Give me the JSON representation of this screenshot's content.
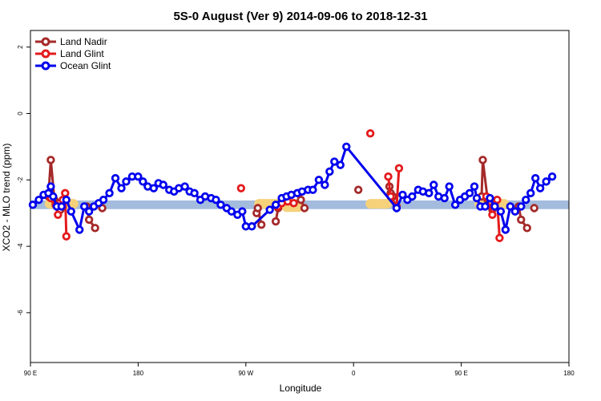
{
  "chart_data": {
    "type": "line",
    "title": "5S-0 August (Ver 9)   2014-09-06 to 2018-12-31",
    "xlabel": "Longitude",
    "ylabel": "XCO2 - MLO trend (ppm)",
    "xlim": [
      90,
      540
    ],
    "ylim": [
      -7.5,
      2.5
    ],
    "x_ticks": [
      {
        "value": 90,
        "label": "90 E"
      },
      {
        "value": 180,
        "label": "180"
      },
      {
        "value": 270,
        "label": "90 W"
      },
      {
        "value": 360,
        "label": "0"
      },
      {
        "value": 450,
        "label": "90 E"
      },
      {
        "value": 540,
        "label": "180"
      }
    ],
    "y_ticks": [
      {
        "value": 2,
        "label": "2"
      },
      {
        "value": 0,
        "label": "0"
      },
      {
        "value": -2,
        "label": "-2"
      },
      {
        "value": -4,
        "label": "-4"
      },
      {
        "value": -6,
        "label": "-6"
      }
    ],
    "band": {
      "y_low": -2.88,
      "y_high": -2.62,
      "color": "#a3bbdd"
    },
    "land_highlights": [
      {
        "x_start": 102,
        "x_end": 130,
        "y": -2.72
      },
      {
        "x_start": 277,
        "x_end": 315,
        "y": -2.72
      },
      {
        "x_start": 300,
        "x_end": 318,
        "y": -2.82
      },
      {
        "x_start": 370,
        "x_end": 392,
        "y": -2.72
      },
      {
        "x_start": 461,
        "x_end": 490,
        "y": -2.72
      }
    ],
    "highlight_color": "#f5d27a",
    "legend": {
      "position": "top-left"
    },
    "series": [
      {
        "name": "Land Nadir",
        "color": "#a52a2a",
        "segments": [
          [
            [
              105,
              -2.5
            ],
            [
              107,
              -1.4
            ],
            [
              110,
              -2.6
            ]
          ],
          [
            [
              113,
              -2.7
            ],
            [
              115,
              -2.9
            ]
          ],
          [
            [
              137,
              -2.8
            ],
            [
              139,
              -3.2
            ],
            [
              144,
              -3.45
            ]
          ],
          [
            [
              150,
              -2.85
            ]
          ],
          [
            [
              279,
              -3.0
            ],
            [
              280,
              -2.85
            ],
            [
              283,
              -3.35
            ]
          ],
          [
            [
              295,
              -3.25
            ],
            [
              297,
              -2.85
            ]
          ],
          [
            [
              314,
              -2.4
            ],
            [
              316,
              -2.6
            ],
            [
              319,
              -2.85
            ]
          ],
          [
            [
              364,
              -2.3
            ]
          ],
          [
            [
              390,
              -2.2
            ],
            [
              391,
              -2.4
            ],
            [
              393,
              -2.5
            ]
          ],
          [
            [
              467,
              -2.5
            ],
            [
              468,
              -1.4
            ],
            [
              472,
              -2.6
            ]
          ],
          [
            [
              473,
              -2.7
            ],
            [
              476,
              -2.9
            ]
          ],
          [
            [
              498,
              -2.8
            ],
            [
              500,
              -3.2
            ],
            [
              505,
              -3.45
            ]
          ],
          [
            [
              511,
              -2.85
            ]
          ]
        ]
      },
      {
        "name": "Land Glint",
        "color": "#e41a1c",
        "segments": [
          [
            [
              107,
              -2.55
            ],
            [
              111,
              -2.75
            ],
            [
              113,
              -3.05
            ]
          ],
          [
            [
              117,
              -2.6
            ],
            [
              119,
              -2.4
            ],
            [
              120,
              -3.7
            ]
          ],
          [
            [
              266,
              -2.25
            ]
          ],
          [
            [
              297,
              -2.8
            ],
            [
              300,
              -2.7
            ],
            [
              305,
              -2.65
            ],
            [
              310,
              -2.7
            ]
          ],
          [
            [
              374,
              -0.6
            ]
          ],
          [
            [
              389,
              -1.9
            ],
            [
              391,
              -2.5
            ],
            [
              396,
              -2.8
            ],
            [
              398,
              -1.65
            ]
          ],
          [
            [
              471,
              -2.5
            ],
            [
              476,
              -3.05
            ],
            [
              480,
              -2.6
            ],
            [
              482,
              -3.75
            ]
          ]
        ]
      },
      {
        "name": "Ocean Glint",
        "color": "#0000ee",
        "segments": [
          [
            [
              92,
              -2.75
            ],
            [
              97,
              -2.6
            ],
            [
              101,
              -2.45
            ],
            [
              105,
              -2.4
            ],
            [
              107,
              -2.2
            ],
            [
              109,
              -2.5
            ],
            [
              112,
              -2.8
            ],
            [
              116,
              -2.8
            ],
            [
              120,
              -2.6
            ],
            [
              124,
              -2.95
            ],
            [
              131,
              -3.5
            ],
            [
              135,
              -2.8
            ],
            [
              139,
              -2.95
            ],
            [
              143,
              -2.8
            ],
            [
              147,
              -2.7
            ],
            [
              151,
              -2.6
            ],
            [
              156,
              -2.4
            ],
            [
              161,
              -1.95
            ],
            [
              166,
              -2.25
            ],
            [
              170,
              -2.05
            ],
            [
              175,
              -1.9
            ],
            [
              180,
              -1.9
            ],
            [
              184,
              -2.05
            ],
            [
              188,
              -2.2
            ],
            [
              193,
              -2.25
            ],
            [
              197,
              -2.1
            ],
            [
              201,
              -2.15
            ],
            [
              206,
              -2.3
            ],
            [
              210,
              -2.35
            ],
            [
              214,
              -2.25
            ],
            [
              219,
              -2.2
            ],
            [
              223,
              -2.35
            ],
            [
              227,
              -2.4
            ],
            [
              232,
              -2.6
            ],
            [
              236,
              -2.5
            ],
            [
              241,
              -2.55
            ],
            [
              245,
              -2.6
            ],
            [
              249,
              -2.75
            ],
            [
              254,
              -2.85
            ],
            [
              258,
              -2.95
            ],
            [
              263,
              -3.05
            ],
            [
              267,
              -2.95
            ],
            [
              270,
              -3.4
            ],
            [
              275,
              -3.4
            ],
            [
              290,
              -2.9
            ],
            [
              295,
              -2.75
            ],
            [
              300,
              -2.55
            ],
            [
              304,
              -2.5
            ],
            [
              308,
              -2.45
            ],
            [
              313,
              -2.4
            ],
            [
              317,
              -2.35
            ],
            [
              322,
              -2.3
            ],
            [
              326,
              -2.3
            ],
            [
              331,
              -2.0
            ],
            [
              336,
              -2.15
            ],
            [
              340,
              -1.75
            ],
            [
              344,
              -1.45
            ],
            [
              349,
              -1.55
            ],
            [
              354,
              -1.0
            ],
            [
              396,
              -2.85
            ],
            [
              401,
              -2.45
            ],
            [
              405,
              -2.6
            ],
            [
              409,
              -2.5
            ],
            [
              414,
              -2.3
            ],
            [
              418,
              -2.35
            ],
            [
              423,
              -2.4
            ],
            [
              427,
              -2.15
            ],
            [
              431,
              -2.5
            ],
            [
              436,
              -2.55
            ],
            [
              440,
              -2.2
            ],
            [
              445,
              -2.75
            ],
            [
              449,
              -2.6
            ],
            [
              453,
              -2.5
            ],
            [
              457,
              -2.4
            ],
            [
              461,
              -2.2
            ],
            [
              463,
              -2.55
            ],
            [
              466,
              -2.8
            ],
            [
              470,
              -2.8
            ],
            [
              474,
              -2.55
            ],
            [
              478,
              -2.8
            ],
            [
              483,
              -2.95
            ],
            [
              487,
              -3.5
            ],
            [
              491,
              -2.8
            ],
            [
              495,
              -2.95
            ],
            [
              500,
              -2.8
            ],
            [
              504,
              -2.6
            ],
            [
              508,
              -2.4
            ],
            [
              512,
              -1.95
            ],
            [
              516,
              -2.25
            ],
            [
              521,
              -2.05
            ],
            [
              526,
              -1.9
            ]
          ]
        ]
      }
    ]
  }
}
